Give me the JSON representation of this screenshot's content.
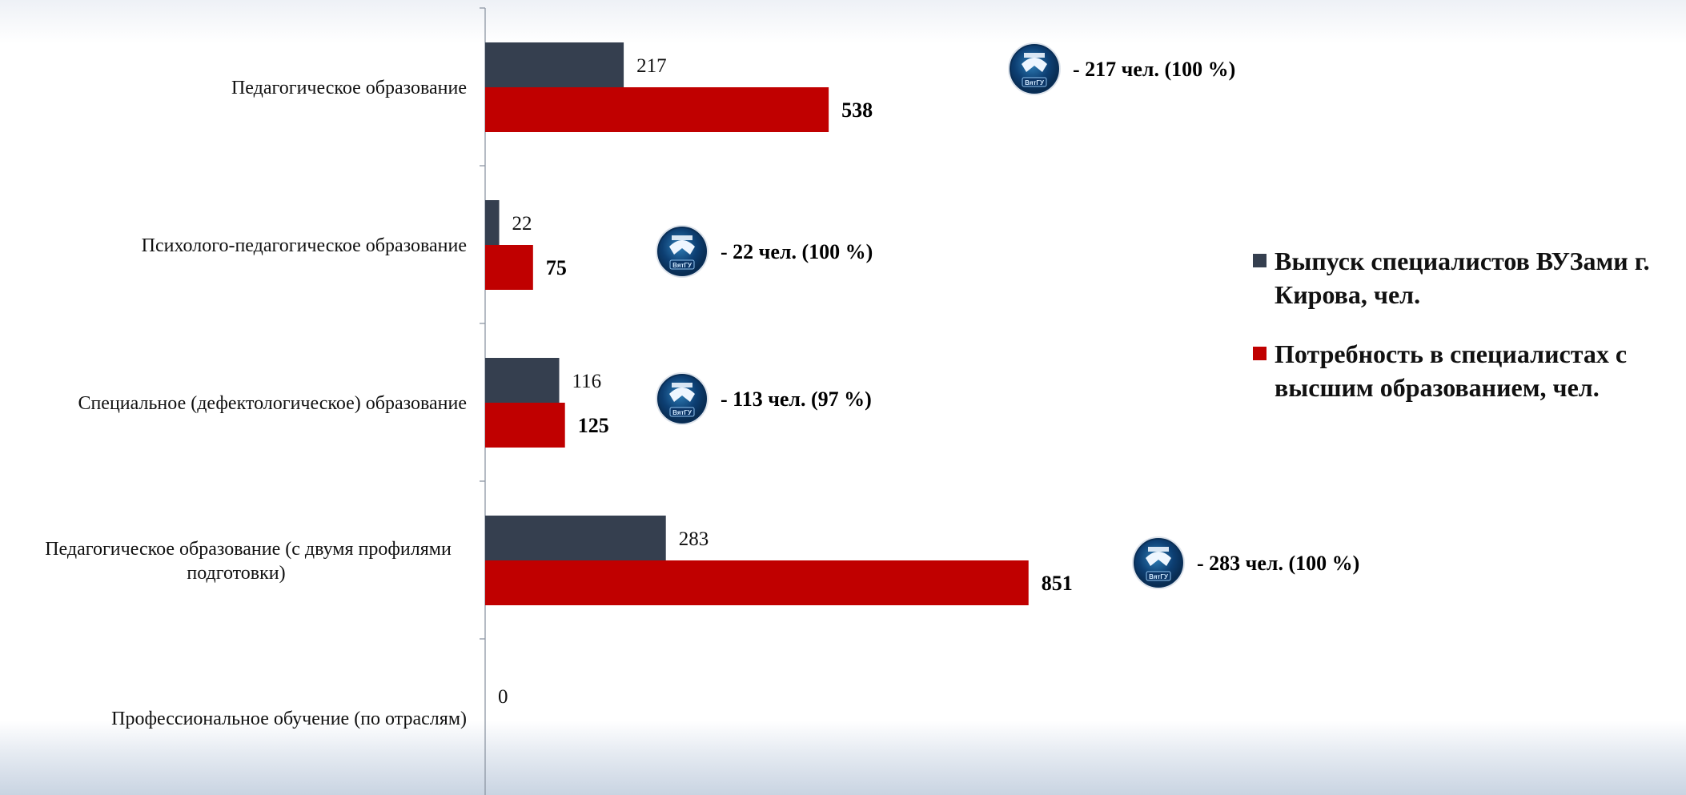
{
  "chart_data": {
    "type": "bar",
    "orientation": "horizontal",
    "categories": [
      "Педагогическое образование",
      "Психолого-педагогическое образование",
      "Специальное (дефектологическое) образование",
      "Педагогическое образование (с двумя профилями подготовки)",
      "Профессиональное обучение (по отраслям)"
    ],
    "category_lines": [
      [
        "Педагогическое образование"
      ],
      [
        "Психолого-педагогическое образование"
      ],
      [
        "Специальное (дефектологическое) образование"
      ],
      [
        "Педагогическое образование (с двумя профилями",
        "подготовки)"
      ],
      [
        "Профессиональное обучение (по отраслям)"
      ]
    ],
    "series": [
      {
        "name": "Выпуск специалистов ВУЗами г. Кирова, чел.",
        "values": [
          217,
          22,
          116,
          283,
          0
        ],
        "labels": [
          "217",
          "22",
          "116",
          "283",
          "0"
        ],
        "color": "#353f4f"
      },
      {
        "name": "Потребность в специалистах с высшим образованием, чел.",
        "values": [
          538,
          75,
          125,
          851,
          null
        ],
        "labels": [
          "538",
          "75",
          "125",
          "851",
          ""
        ],
        "color": "#c00000"
      }
    ],
    "xlim": [
      0,
      1800
    ],
    "grid": false,
    "legend_position": "right",
    "annotations": [
      {
        "category_index": 0,
        "icon": "vyatgu-logo-icon",
        "text": "-  217  чел. (100 %)"
      },
      {
        "category_index": 1,
        "icon": "vyatgu-logo-icon",
        "text": "-  22  чел. (100 %)"
      },
      {
        "category_index": 2,
        "icon": "vyatgu-logo-icon",
        "text": "-  113  чел. (97 %)"
      },
      {
        "category_index": 3,
        "icon": "vyatgu-logo-icon",
        "text": "-  283  чел. (100 %)"
      }
    ],
    "logo_text": "ВятГУ"
  }
}
